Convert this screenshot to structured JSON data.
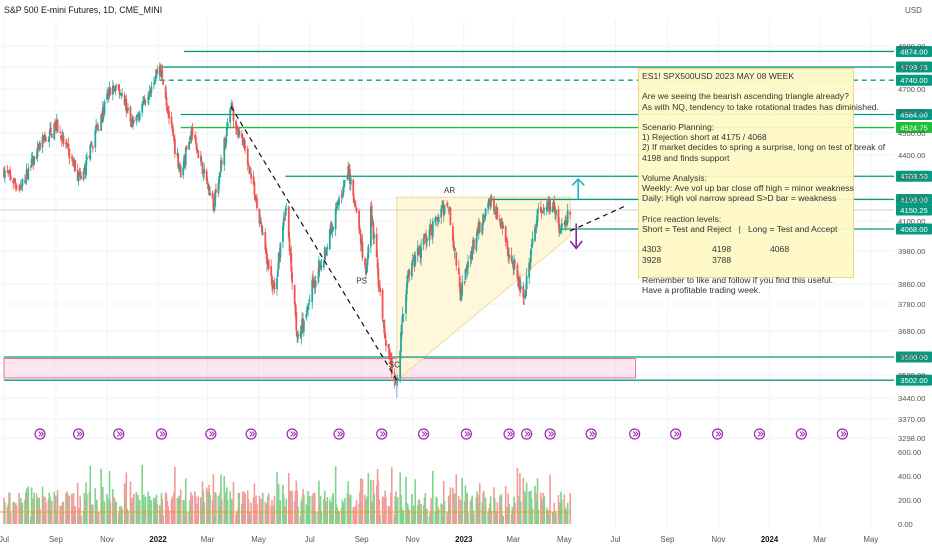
{
  "header": {
    "symbol_title": "S&P 500 E-mini Futures, 1D, CME_MINI",
    "currency": "USD"
  },
  "colors": {
    "bull": "#26a69a",
    "bear": "#ef5350",
    "vol_bull": "#7fd38a",
    "vol_bear": "#f19a9a",
    "teal": "#089981",
    "green_line": "#1fbf3a",
    "triangle_fill": "#fff6d3"
  },
  "chart_data": {
    "type": "candlestick",
    "title": "S&P 500 E-mini Futures, 1D, CME_MINI",
    "y_unit": "USD",
    "y_range": [
      3250,
      4950
    ],
    "x_range": [
      "2021-07-01",
      "2024-05-31"
    ],
    "price_ticks": [
      4900,
      4800,
      4700,
      4600,
      4500,
      4400,
      4300,
      4200,
      4100,
      3980,
      3860,
      3780,
      3680,
      3580,
      3520,
      3440,
      3370,
      3298
    ],
    "x_ticks": [
      {
        "date": "2021-07-01",
        "label": "Jul"
      },
      {
        "date": "2021-09-01",
        "label": "Sep"
      },
      {
        "date": "2021-11-01",
        "label": "Nov"
      },
      {
        "date": "2022-01-01",
        "label": "2022"
      },
      {
        "date": "2022-03-01",
        "label": "Mar"
      },
      {
        "date": "2022-05-01",
        "label": "May"
      },
      {
        "date": "2022-07-01",
        "label": "Jul"
      },
      {
        "date": "2022-09-01",
        "label": "Sep"
      },
      {
        "date": "2022-11-01",
        "label": "Nov"
      },
      {
        "date": "2023-01-01",
        "label": "2023"
      },
      {
        "date": "2023-03-01",
        "label": "Mar"
      },
      {
        "date": "2023-05-01",
        "label": "May"
      },
      {
        "date": "2023-07-01",
        "label": "Jul"
      },
      {
        "date": "2023-09-01",
        "label": "Sep"
      },
      {
        "date": "2023-11-01",
        "label": "Nov"
      },
      {
        "date": "2024-01-01",
        "label": "2024"
      },
      {
        "date": "2024-03-01",
        "label": "Mar"
      },
      {
        "date": "2024-05-01",
        "label": "May"
      }
    ],
    "price_path": [
      [
        "2021-07-01",
        4330
      ],
      [
        "2021-07-20",
        4250
      ],
      [
        "2021-08-15",
        4450
      ],
      [
        "2021-09-02",
        4530
      ],
      [
        "2021-10-01",
        4280
      ],
      [
        "2021-10-20",
        4520
      ],
      [
        "2021-11-05",
        4700
      ],
      [
        "2021-11-20",
        4680
      ],
      [
        "2021-12-01",
        4520
      ],
      [
        "2021-12-15",
        4650
      ],
      [
        "2022-01-03",
        4805
      ],
      [
        "2022-01-20",
        4450
      ],
      [
        "2022-01-28",
        4320
      ],
      [
        "2022-02-10",
        4510
      ],
      [
        "2022-03-08",
        4170
      ],
      [
        "2022-03-29",
        4620
      ],
      [
        "2022-04-18",
        4380
      ],
      [
        "2022-05-02",
        4100
      ],
      [
        "2022-05-20",
        3820
      ],
      [
        "2022-06-02",
        4170
      ],
      [
        "2022-06-17",
        3640
      ],
      [
        "2022-07-01",
        3820
      ],
      [
        "2022-07-20",
        3990
      ],
      [
        "2022-08-16",
        4330
      ],
      [
        "2022-09-06",
        3890
      ],
      [
        "2022-09-12",
        4140
      ],
      [
        "2022-09-30",
        3610
      ],
      [
        "2022-10-13",
        3502
      ],
      [
        "2022-10-25",
        3880
      ],
      [
        "2022-11-15",
        4020
      ],
      [
        "2022-12-01",
        4110
      ],
      [
        "2022-12-13",
        4180
      ],
      [
        "2022-12-28",
        3820
      ],
      [
        "2023-01-10",
        3980
      ],
      [
        "2023-02-02",
        4208
      ],
      [
        "2023-02-24",
        3980
      ],
      [
        "2023-03-13",
        3808
      ],
      [
        "2023-03-31",
        4140
      ],
      [
        "2023-04-18",
        4180
      ],
      [
        "2023-04-26",
        4060
      ],
      [
        "2023-05-08",
        4150
      ]
    ],
    "volume_range": [
      0,
      600
    ],
    "volume_ticks": [
      600,
      400,
      200,
      0
    ],
    "volume_tick_labels": [
      "600.00",
      "400.00",
      "200.00",
      "0.00"
    ],
    "volume_average": 100,
    "horizontal_levels": [
      {
        "price": 4874.0,
        "label": "4874.00",
        "style": "solid",
        "color": "#089981",
        "from": "2022-02-01"
      },
      {
        "price": 4799.75,
        "label": "4799.75",
        "style": "solid",
        "color": "#089981",
        "from": "2022-01-03"
      },
      {
        "price": 4740.0,
        "label": "4740.00",
        "style": "dashed",
        "color": "#089981",
        "from": "2022-01-03"
      },
      {
        "price": 4584.0,
        "label": "4584.00",
        "style": "solid",
        "color": "#089981",
        "from": "2022-01-28"
      },
      {
        "price": 4524.75,
        "label": "4524.75",
        "style": "solid",
        "color": "#1fbf3a",
        "from": "2022-01-28"
      },
      {
        "price": 4303.5,
        "label": "4303.50",
        "style": "solid",
        "color": "#089981",
        "from": "2022-06-02"
      },
      {
        "price": 4198.0,
        "label": "4198.00",
        "style": "solid",
        "color": "#089981",
        "from": "2023-02-02"
      },
      {
        "price": 4150.25,
        "label": "4150.25",
        "style": "current",
        "color": "#089981",
        "from": "2021-07-01"
      },
      {
        "price": 4068.0,
        "label": "4068.00",
        "style": "solid",
        "color": "#089981",
        "from": "2023-04-26"
      },
      {
        "price": 3580.0,
        "label": "3580.00",
        "style": "solid",
        "color": "#089981",
        "from": "2021-07-01"
      },
      {
        "price": 3502.0,
        "label": "3502.00",
        "style": "solid",
        "color": "#089981",
        "from": "2021-07-01"
      }
    ],
    "support_zone": {
      "from": "2021-07-01",
      "to": "2023-07-25",
      "low": 3510,
      "high": 3575
    },
    "trendline": {
      "from": [
        "2022-03-29",
        4620
      ],
      "to": [
        "2022-10-13",
        3502
      ]
    },
    "triangle": {
      "apex": [
        "2022-10-13",
        3502
      ],
      "top_left": [
        "2022-10-13",
        4208
      ],
      "top_right": [
        "2023-05-08",
        4208
      ],
      "bottom_right": [
        "2023-05-08",
        4040
      ]
    },
    "annotations": [
      {
        "text": "AR",
        "date": "2022-12-15",
        "price": 4228
      },
      {
        "text": "PS",
        "date": "2022-09-01",
        "price": 3862
      },
      {
        "text": "SC",
        "date": "2022-10-10",
        "price": 3545
      }
    ],
    "event_markers": [
      "2021-08-13",
      "2021-09-28",
      "2021-11-15",
      "2022-01-05",
      "2022-03-05",
      "2022-04-22",
      "2022-06-10",
      "2022-08-05",
      "2022-09-25",
      "2022-11-14",
      "2023-01-04",
      "2023-02-24",
      "2023-03-17",
      "2023-04-14",
      "2023-06-02",
      "2023-07-24",
      "2023-09-11",
      "2023-10-31",
      "2023-12-20",
      "2024-02-08",
      "2024-03-28"
    ]
  },
  "note": {
    "title": "ES1! SPX500USD 2023 MAY 08 WEEK",
    "line1": "Are we seeing the bearish ascending triangle already?",
    "line2": "As with NQ, tendency to take rotational trades has diminished.",
    "planning_title": "Scenario Planning:",
    "plan1": "1) Rejection short at 4175 / 4068",
    "plan2": "2) If market decides to spring a surprise, long on test of break of",
    "plan3": "4198 and finds support",
    "volume_title": "Volume Analysis:",
    "vol1": "Weekly: Ave vol up bar close off high = minor weakness",
    "vol2": "Daily: High vol narrow spread S>D bar = weakness",
    "levels_title": "Price reaction levels:",
    "levels_legend": "Short = Test and Reject   |   Long = Test and Accept",
    "levels": [
      "4303",
      "4198",
      "4068",
      "3928",
      "3788"
    ],
    "footer1": "Remember to like and follow if you find this useful.",
    "footer2": "Have a profitable trading week."
  }
}
